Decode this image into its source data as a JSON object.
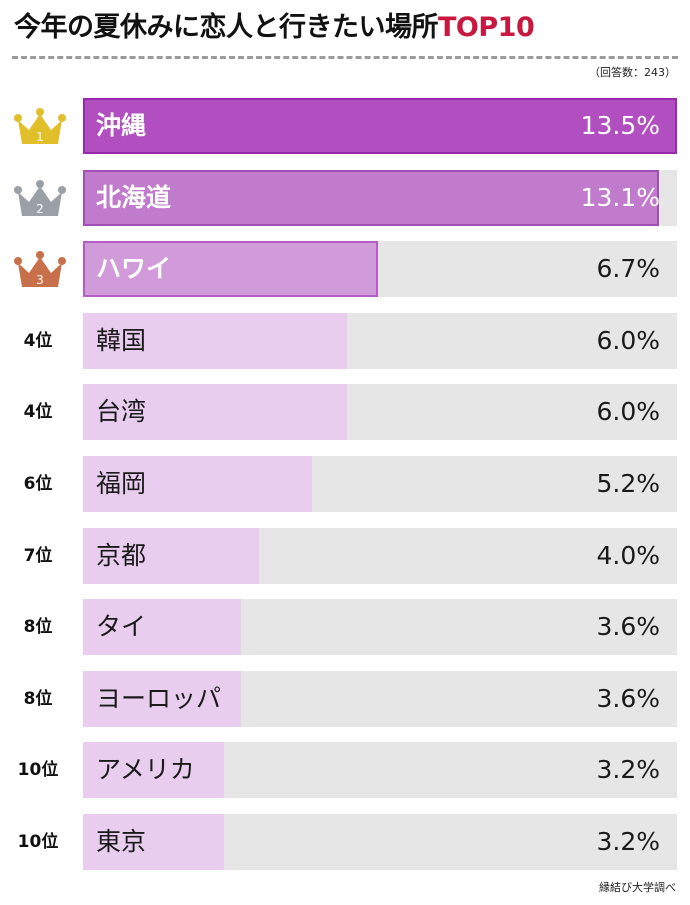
{
  "header": {
    "title_main": "今年の夏休みに恋人と行きたい場所",
    "title_accent": "TOP10",
    "respondents": "（回答数：243）"
  },
  "footer": {
    "source": "縁結び大学調べ"
  },
  "colors": {
    "accent": "#c8183f",
    "gold": "#e0bf2a",
    "silver": "#9aa0a6",
    "bronze": "#c8704a",
    "bar_top1": "#b14fc0",
    "bar_top2": "#c07bcc",
    "bar_top3": "#d09bd8",
    "bar_rest": "#e8cdee",
    "track": "#e6e6e6"
  },
  "chart_data": {
    "type": "bar",
    "orientation": "horizontal",
    "unit": "%",
    "xlim": [
      0,
      13.5
    ],
    "categories": [
      "沖縄",
      "北海道",
      "ハワイ",
      "韓国",
      "台湾",
      "福岡",
      "京都",
      "タイ",
      "ヨーロッパ",
      "アメリカ",
      "東京"
    ],
    "values": [
      13.5,
      13.1,
      6.7,
      6.0,
      6.0,
      5.2,
      4.0,
      3.6,
      3.6,
      3.2,
      3.2
    ],
    "value_labels": [
      "13.5%",
      "13.1%",
      "6.7%",
      "6.0%",
      "6.0%",
      "5.2%",
      "4.0%",
      "3.6%",
      "3.6%",
      "3.2%",
      "3.2%"
    ],
    "ranks": [
      "1",
      "2",
      "3",
      "4位",
      "4位",
      "6位",
      "7位",
      "8位",
      "8位",
      "10位",
      "10位"
    ],
    "crowns": [
      "gold-crown-icon",
      "silver-crown-icon",
      "bronze-crown-icon"
    ]
  }
}
